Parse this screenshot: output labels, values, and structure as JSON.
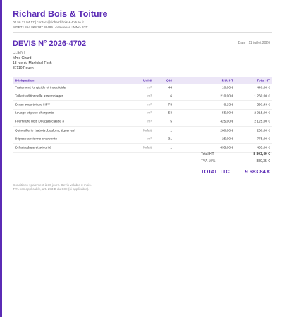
{
  "header": {
    "company": "Richard Bois & Toiture",
    "contact": "05 56 77 94 17  |  contact@richard-bois-&-toiture.fr",
    "legal": "SIRET : 954 829 737 38486  |  Assurance : MMA BTP"
  },
  "document": {
    "title": "DEVIS N° 2026-4702",
    "date": "Date : 11 juillet 2026"
  },
  "client": {
    "label": "CLIENT",
    "name": "Mme Girard",
    "street": "18 rue du Maréchal Foch",
    "city": "87110 Rouen"
  },
  "table": {
    "columns": [
      "Désignation",
      "Unité",
      "Qté",
      "P.U. HT",
      "Total HT"
    ],
    "rows": [
      [
        "Traitement fongicide et insecticide",
        "m²",
        "44",
        "10,00 €",
        "440,00 €"
      ],
      [
        "Taille traditionnelle assemblages",
        "m³",
        "6",
        "210,00 €",
        "1 260,00 €"
      ],
      [
        "Écran sous-toiture HPV",
        "m²",
        "73",
        "8,13 €",
        "593,49 €"
      ],
      [
        "Levage et pose charpente",
        "m²",
        "53",
        "55,00 €",
        "2 915,00 €"
      ],
      [
        "Fourniture bois Douglas classe 3",
        "m³",
        "5",
        "425,00 €",
        "2 125,00 €"
      ],
      [
        "Quincaillerie (sabots, boulons, équerres)",
        "forfait",
        "1",
        "260,00 €",
        "260,00 €"
      ],
      [
        "Dépose ancienne charpente",
        "m²",
        "31",
        "25,00 €",
        "775,00 €"
      ],
      [
        "Échafaudage et sécurité",
        "forfait",
        "1",
        "435,00 €",
        "435,00 €"
      ]
    ]
  },
  "totals": {
    "ht_label": "Total HT",
    "ht": "8 803,49 €",
    "tva_label": "TVA 10%",
    "tva": "880,35 €",
    "ttc_label": "TOTAL TTC",
    "ttc": "9 683,84 €"
  },
  "footer": {
    "line1": "Conditions : paiement à 30 jours. Devis valable 3 mois.",
    "line2": "TVA non applicable, art. 293 B du CGI (si applicable)."
  }
}
